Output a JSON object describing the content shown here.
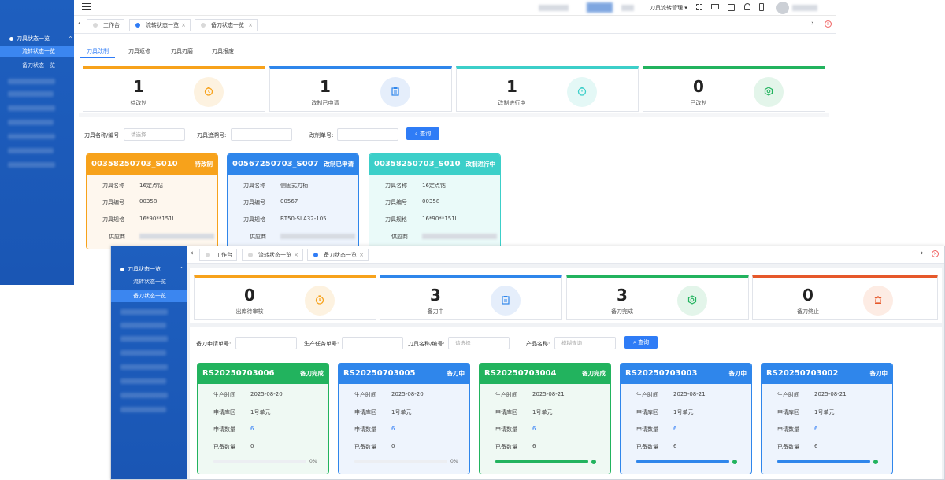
{
  "colors": {
    "orange": "#f7a21b",
    "blue": "#2f86eb",
    "teal": "#3ccfc9",
    "green": "#22b35e",
    "red": "#e6582a",
    "primary": "#2f7cf6"
  },
  "w1": {
    "sidebar": {
      "group": "刀具状态一览",
      "items": [
        "流转状态一览",
        "备刀状态一览"
      ]
    },
    "topbar": {
      "menu": "刀具流转管理"
    },
    "tabs": [
      {
        "label": "工作台"
      },
      {
        "label": "流转状态一览"
      },
      {
        "label": "备刀状态一览"
      }
    ],
    "subtabs": [
      "刀具改制",
      "刀具返修",
      "刀具刃磨",
      "刀具报废"
    ],
    "stats": [
      {
        "num": "1",
        "label": "待改制",
        "icon": "clock-icon"
      },
      {
        "num": "1",
        "label": "改制已申请",
        "icon": "clipboard-icon"
      },
      {
        "num": "1",
        "label": "改制进行中",
        "icon": "timer-icon"
      },
      {
        "num": "0",
        "label": "已改制",
        "icon": "hexagon-check-icon"
      }
    ],
    "filters": [
      {
        "label": "刀具名称/编号:",
        "placeholder": "请选择"
      },
      {
        "label": "刀具追溯号:",
        "placeholder": ""
      },
      {
        "label": "改制单号:",
        "placeholder": ""
      }
    ],
    "search_label": "查询",
    "cards": [
      {
        "code": "00358250703_S010",
        "status": "待改制",
        "rows": [
          [
            "刀具名称",
            "16定点钻"
          ],
          [
            "刀具编号",
            "00358"
          ],
          [
            "刀具规格",
            "16*90**151L"
          ],
          [
            "供应商",
            ""
          ]
        ]
      },
      {
        "code": "00567250703_S007",
        "status": "改制已申请",
        "rows": [
          [
            "刀具名称",
            "侧固式刀柄"
          ],
          [
            "刀具编号",
            "00567"
          ],
          [
            "刀具规格",
            "BT50-SLA32-105"
          ],
          [
            "供应商",
            ""
          ]
        ]
      },
      {
        "code": "00358250703_S010",
        "status": "改制进行中",
        "rows": [
          [
            "刀具名称",
            "16定点钻"
          ],
          [
            "刀具编号",
            "00358"
          ],
          [
            "刀具规格",
            "16*90**151L"
          ],
          [
            "供应商",
            ""
          ]
        ]
      }
    ]
  },
  "w2": {
    "sidebar": {
      "group": "刀具状态一览",
      "items": [
        "流转状态一览",
        "备刀状态一览"
      ]
    },
    "tabs": [
      {
        "label": "工作台"
      },
      {
        "label": "流转状态一览"
      },
      {
        "label": "备刀状态一览"
      }
    ],
    "stats": [
      {
        "num": "0",
        "label": "出库待审核",
        "icon": "clock-icon"
      },
      {
        "num": "3",
        "label": "备刀中",
        "icon": "clipboard-icon"
      },
      {
        "num": "3",
        "label": "备刀完成",
        "icon": "hexagon-check-icon"
      },
      {
        "num": "0",
        "label": "备刀终止",
        "icon": "alarm-icon"
      }
    ],
    "filters": [
      {
        "label": "备刀申请单号:",
        "placeholder": ""
      },
      {
        "label": "生产任务单号:",
        "placeholder": ""
      },
      {
        "label": "刀具名称/编号:",
        "placeholder": "请选择"
      },
      {
        "label": "产品名称:",
        "placeholder": "模糊查询"
      }
    ],
    "search_label": "查询",
    "cards": [
      {
        "code": "RS20250703006",
        "status": "备刀完成",
        "time": "2025-08-20",
        "area": "1号单元",
        "qty": "6",
        "done": "0",
        "progress": 0,
        "pct": "0%"
      },
      {
        "code": "RS20250703005",
        "status": "备刀中",
        "time": "2025-08-20",
        "area": "1号单元",
        "qty": "6",
        "done": "0",
        "progress": 0,
        "pct": "0%"
      },
      {
        "code": "RS20250703004",
        "status": "备刀完成",
        "time": "2025-08-21",
        "area": "1号单元",
        "qty": "6",
        "done": "6",
        "progress": 100,
        "pct": ""
      },
      {
        "code": "RS20250703003",
        "status": "备刀中",
        "time": "2025-08-21",
        "area": "1号单元",
        "qty": "6",
        "done": "6",
        "progress": 100,
        "pct": ""
      },
      {
        "code": "RS20250703002",
        "status": "备刀中",
        "time": "2025-08-21",
        "area": "1号单元",
        "qty": "6",
        "done": "6",
        "progress": 100,
        "pct": ""
      }
    ],
    "row_labels": [
      "生产时间",
      "申请库区",
      "申请数量",
      "已备数量"
    ]
  }
}
